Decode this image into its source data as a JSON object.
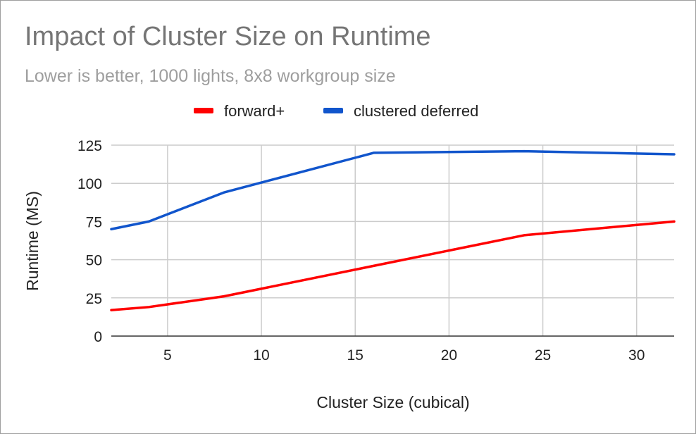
{
  "chart_data": {
    "type": "line",
    "title": "Impact of Cluster Size on Runtime",
    "subtitle": "Lower is better, 1000 lights, 8x8 workgroup size",
    "xlabel": "Cluster Size (cubical)",
    "ylabel": "Runtime (MS)",
    "xlim": [
      2,
      32
    ],
    "ylim": [
      0,
      125
    ],
    "x_ticks": [
      5,
      10,
      15,
      20,
      25,
      30
    ],
    "y_ticks": [
      0,
      25,
      50,
      75,
      100,
      125
    ],
    "grid": true,
    "legend_position": "top",
    "series": [
      {
        "name": "forward+",
        "color": "#ff0000",
        "x": [
          2,
          4,
          8,
          16,
          24,
          32
        ],
        "values": [
          17,
          19,
          26,
          46,
          66,
          75
        ]
      },
      {
        "name": "clustered deferred",
        "color": "#1155cc",
        "x": [
          2,
          4,
          8,
          16,
          24,
          32
        ],
        "values": [
          70,
          75,
          94,
          120,
          121,
          119
        ]
      }
    ]
  }
}
